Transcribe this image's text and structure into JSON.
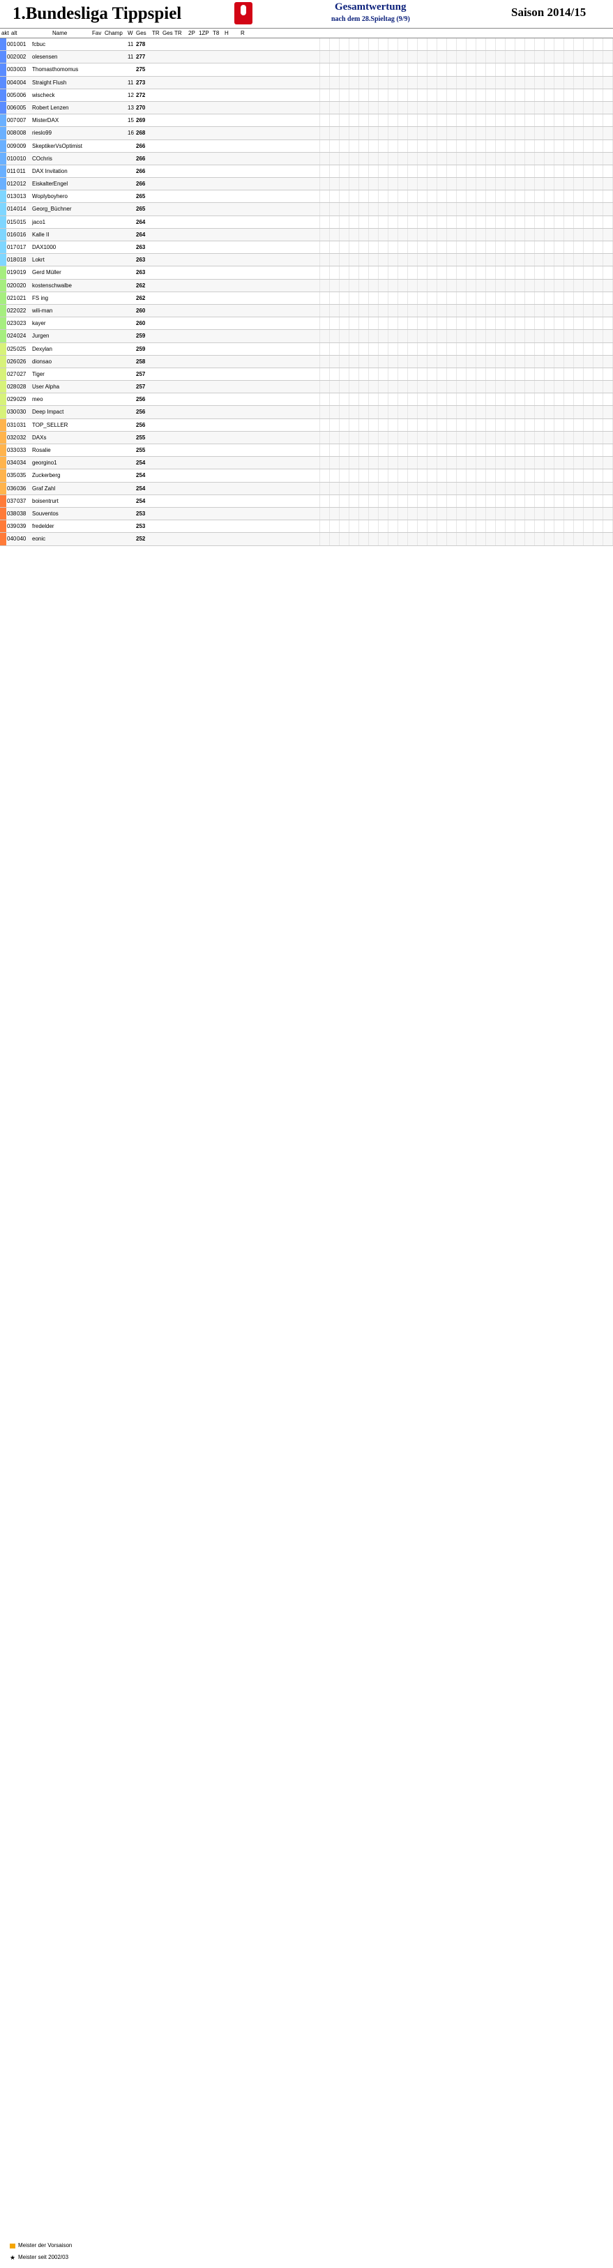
{
  "header": {
    "title": "1.Bundesliga Tippspiel",
    "subtitle": "Gesamtwertung",
    "subtitle_detail": "nach dem 28.Spieltag (9/9)",
    "season": "Saison 2014/15"
  },
  "columns": [
    "akt",
    "alt",
    "Name",
    "Fav",
    "Champ",
    "W",
    "Ges",
    "TR",
    "Ges",
    "TR",
    "2P",
    "1ZP",
    "T8",
    "H",
    "R"
  ],
  "players": [
    {
      "akt": "001",
      "alt": "001",
      "name": "fcbuc",
      "w": "11",
      "ges": "278"
    },
    {
      "akt": "002",
      "alt": "002",
      "name": "olesensen",
      "w": "11",
      "ges": "277"
    },
    {
      "akt": "003",
      "alt": "003",
      "name": "Thomasthomomus",
      "w": "",
      "ges": "275"
    },
    {
      "akt": "004",
      "alt": "004",
      "name": "Straight Flush",
      "w": "11",
      "ges": "273"
    },
    {
      "akt": "005",
      "alt": "006",
      "name": "wischeck",
      "w": "12",
      "ges": "272"
    },
    {
      "akt": "006",
      "alt": "005",
      "name": "Robert Lenzen",
      "w": "13",
      "ges": "270"
    },
    {
      "akt": "007",
      "alt": "007",
      "name": "MisterDAX",
      "w": "15",
      "ges": "269"
    },
    {
      "akt": "008",
      "alt": "008",
      "name": "rieslo99",
      "w": "16",
      "ges": "268"
    },
    {
      "akt": "009",
      "alt": "009",
      "name": "SkeptikerVsOptimist",
      "w": "",
      "ges": "266"
    },
    {
      "akt": "010",
      "alt": "010",
      "name": "COchris",
      "w": "",
      "ges": "266"
    },
    {
      "akt": "011",
      "alt": "011",
      "name": "DAX Invitation",
      "w": "",
      "ges": "266"
    },
    {
      "akt": "012",
      "alt": "012",
      "name": "EiskalterEngel",
      "w": "",
      "ges": "266"
    },
    {
      "akt": "013",
      "alt": "013",
      "name": "Woplyboyhero",
      "w": "",
      "ges": "265"
    },
    {
      "akt": "014",
      "alt": "014",
      "name": "Georg_Büchner",
      "w": "",
      "ges": "265"
    },
    {
      "akt": "015",
      "alt": "015",
      "name": "jaco1",
      "w": "",
      "ges": "264"
    },
    {
      "akt": "016",
      "alt": "016",
      "name": "Kalle II",
      "w": "",
      "ges": "264"
    },
    {
      "akt": "017",
      "alt": "017",
      "name": "DAX1000",
      "w": "",
      "ges": "263"
    },
    {
      "akt": "018",
      "alt": "018",
      "name": "Lokrt",
      "w": "",
      "ges": "263"
    },
    {
      "akt": "019",
      "alt": "019",
      "name": "Gerd Müller",
      "w": "",
      "ges": "263"
    },
    {
      "akt": "020",
      "alt": "020",
      "name": "kostenschwalbe",
      "w": "",
      "ges": "262"
    },
    {
      "akt": "021",
      "alt": "021",
      "name": "FS ing",
      "w": "",
      "ges": "262"
    },
    {
      "akt": "022",
      "alt": "022",
      "name": "wili-man",
      "w": "",
      "ges": "260"
    },
    {
      "akt": "023",
      "alt": "023",
      "name": "kayer",
      "w": "",
      "ges": "260"
    },
    {
      "akt": "024",
      "alt": "024",
      "name": "Jurgen",
      "w": "",
      "ges": "259"
    },
    {
      "akt": "025",
      "alt": "025",
      "name": "Dexylan",
      "w": "",
      "ges": "259"
    },
    {
      "akt": "026",
      "alt": "026",
      "name": "dionsao",
      "w": "",
      "ges": "258"
    },
    {
      "akt": "027",
      "alt": "027",
      "name": "Tiger",
      "w": "",
      "ges": "257"
    },
    {
      "akt": "028",
      "alt": "028",
      "name": "User Alpha",
      "w": "",
      "ges": "257"
    },
    {
      "akt": "029",
      "alt": "029",
      "name": "meo",
      "w": "",
      "ges": "256"
    },
    {
      "akt": "030",
      "alt": "030",
      "name": "Deep Impact",
      "w": "",
      "ges": "256"
    },
    {
      "akt": "031",
      "alt": "031",
      "name": "TOP_SELLER",
      "w": "",
      "ges": "256"
    },
    {
      "akt": "032",
      "alt": "032",
      "name": "DAXs",
      "w": "",
      "ges": "255"
    },
    {
      "akt": "033",
      "alt": "033",
      "name": "Rosalie",
      "w": "",
      "ges": "255"
    },
    {
      "akt": "034",
      "alt": "034",
      "name": "georgino1",
      "w": "",
      "ges": "254"
    },
    {
      "akt": "035",
      "alt": "035",
      "name": "Zuckerberg",
      "w": "",
      "ges": "254"
    },
    {
      "akt": "036",
      "alt": "036",
      "name": "Graf Zahl",
      "w": "",
      "ges": "254"
    },
    {
      "akt": "037",
      "alt": "037",
      "name": "boisentrurt",
      "w": "",
      "ges": "254"
    },
    {
      "akt": "038",
      "alt": "038",
      "name": "Souventos",
      "w": "",
      "ges": "253"
    },
    {
      "akt": "039",
      "alt": "039",
      "name": "fredelder",
      "w": "",
      "ges": "253"
    },
    {
      "akt": "040",
      "alt": "040",
      "name": "eonic",
      "w": "",
      "ges": "252"
    }
  ],
  "footer": {
    "legend_master": "Meister der Vorsaison",
    "legend_star": "Meister seit 2002/03"
  }
}
